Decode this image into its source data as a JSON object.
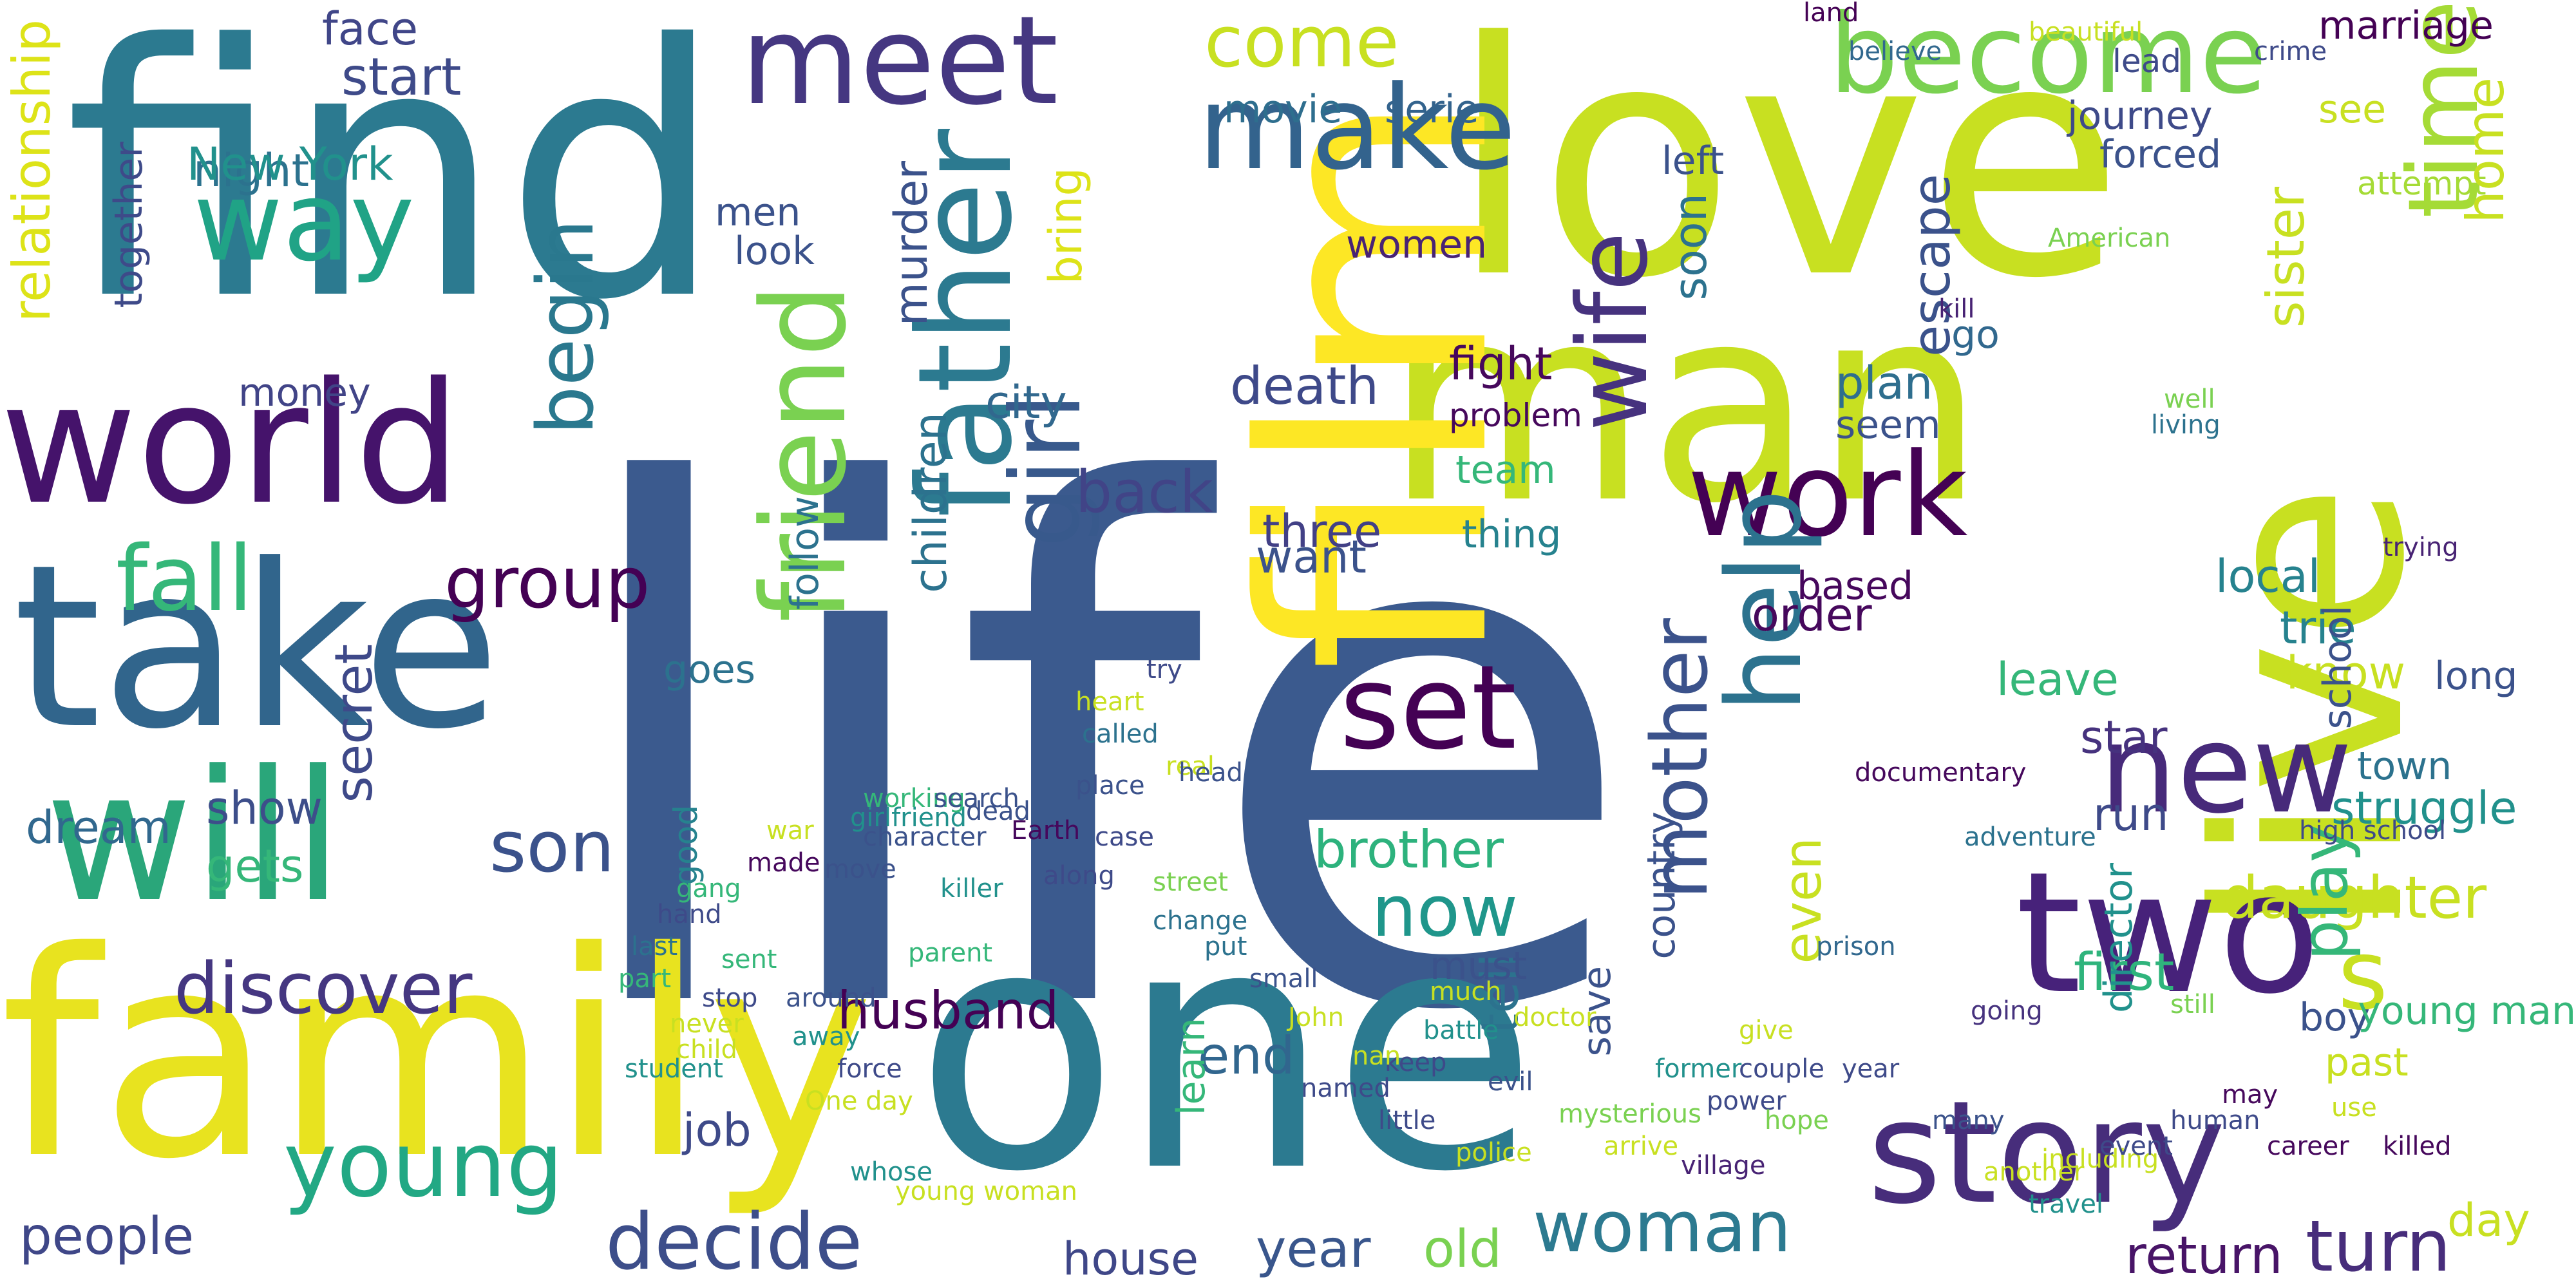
{
  "words": [
    {
      "text": "life",
      "color": "#3b5a8e"
    },
    {
      "text": "find",
      "color": "#2c7a90"
    },
    {
      "text": "love",
      "color": "#c8e021"
    },
    {
      "text": "one",
      "color": "#2c7a90"
    },
    {
      "text": "family",
      "color": "#e8e31f"
    },
    {
      "text": "take",
      "color": "#31658c"
    },
    {
      "text": "man",
      "color": "#c8e021"
    },
    {
      "text": "world",
      "color": "#45136b"
    },
    {
      "text": "will",
      "color": "#2aa67a"
    },
    {
      "text": "film",
      "color": "#fde725"
    },
    {
      "text": "live",
      "color": "#c8e021"
    },
    {
      "text": "two",
      "color": "#47227a"
    },
    {
      "text": "story",
      "color": "#472d7b"
    },
    {
      "text": "father",
      "color": "#2c7a90"
    },
    {
      "text": "meet",
      "color": "#453781"
    },
    {
      "text": "become",
      "color": "#7ad151"
    },
    {
      "text": "friend",
      "color": "#7ad151"
    },
    {
      "text": "way",
      "color": "#20a386"
    },
    {
      "text": "young",
      "color": "#22a884"
    },
    {
      "text": "make",
      "color": "#33638d"
    },
    {
      "text": "new",
      "color": "#472a7a"
    },
    {
      "text": "girl",
      "color": "#38598c"
    },
    {
      "text": "set",
      "color": "#440154"
    },
    {
      "text": "work",
      "color": "#440154"
    },
    {
      "text": "help",
      "color": "#2c728e"
    },
    {
      "text": "wife",
      "color": "#46327e"
    },
    {
      "text": "time",
      "color": "#a5db36"
    },
    {
      "text": "decide",
      "color": "#3d4e8a"
    },
    {
      "text": "discover",
      "color": "#453781"
    },
    {
      "text": "fall",
      "color": "#35b779"
    },
    {
      "text": "son",
      "color": "#3b528b"
    },
    {
      "text": "woman",
      "color": "#2c7a90"
    },
    {
      "text": "group",
      "color": "#440154"
    },
    {
      "text": "begin",
      "color": "#2a788e"
    },
    {
      "text": "mother",
      "color": "#3b528b"
    },
    {
      "text": "come",
      "color": "#c8e021"
    },
    {
      "text": "now",
      "color": "#1f968b"
    },
    {
      "text": "daughter",
      "color": "#c8e021"
    },
    {
      "text": "s",
      "color": "#c8e021"
    },
    {
      "text": "brother",
      "color": "#2db27d"
    },
    {
      "text": "death",
      "color": "#3e4989"
    },
    {
      "text": "back",
      "color": "#414487"
    },
    {
      "text": "first",
      "color": "#2fb47c"
    },
    {
      "text": "husband",
      "color": "#440154"
    },
    {
      "text": "end",
      "color": "#31668e"
    },
    {
      "text": "turn",
      "color": "#472d7b"
    },
    {
      "text": "return",
      "color": "#481467"
    },
    {
      "text": "year",
      "color": "#39568c"
    },
    {
      "text": "old",
      "color": "#7ad151"
    },
    {
      "text": "house",
      "color": "#3f4788"
    },
    {
      "text": "people",
      "color": "#3f4788"
    },
    {
      "text": "job",
      "color": "#3e4a89"
    },
    {
      "text": "dream",
      "color": "#31688e"
    },
    {
      "text": "secret",
      "color": "#3e4989"
    },
    {
      "text": "show",
      "color": "#3d4e8a"
    },
    {
      "text": "gets",
      "color": "#35b779"
    },
    {
      "text": "start",
      "color": "#3e4a89"
    },
    {
      "text": "night",
      "color": "#2c728e"
    },
    {
      "text": "face",
      "color": "#404688"
    },
    {
      "text": "money",
      "color": "#414487"
    },
    {
      "text": "together",
      "color": "#3e4a89"
    },
    {
      "text": "relationship",
      "color": "#dde318"
    },
    {
      "text": "New York",
      "color": "#21918c"
    },
    {
      "text": "men",
      "color": "#3b528b"
    },
    {
      "text": "look",
      "color": "#3b528b"
    },
    {
      "text": "women",
      "color": "#482374"
    },
    {
      "text": "murder",
      "color": "#3b528b"
    },
    {
      "text": "city",
      "color": "#31688e"
    },
    {
      "text": "children",
      "color": "#2c728e"
    },
    {
      "text": "follow",
      "color": "#2c728e"
    },
    {
      "text": "bring",
      "color": "#dde318"
    },
    {
      "text": "movie",
      "color": "#2e6e8e"
    },
    {
      "text": "serie",
      "color": "#33638d"
    },
    {
      "text": "want",
      "color": "#3b528b"
    },
    {
      "text": "three",
      "color": "#424086"
    },
    {
      "text": "fight",
      "color": "#46085c"
    },
    {
      "text": "team",
      "color": "#35b779"
    },
    {
      "text": "thing",
      "color": "#26828e"
    },
    {
      "text": "problem",
      "color": "#46085c"
    },
    {
      "text": "plan",
      "color": "#2e6e8e"
    },
    {
      "text": "seem",
      "color": "#3b528b"
    },
    {
      "text": "escape",
      "color": "#3b528b"
    },
    {
      "text": "go",
      "color": "#31688e"
    },
    {
      "text": "based",
      "color": "#46085c"
    },
    {
      "text": "order",
      "color": "#46085c"
    },
    {
      "text": "leave",
      "color": "#35b779"
    },
    {
      "text": "star",
      "color": "#46327e"
    },
    {
      "text": "sister",
      "color": "#c8e021"
    },
    {
      "text": "see",
      "color": "#c8e021"
    },
    {
      "text": "town",
      "color": "#2c728e"
    },
    {
      "text": "past",
      "color": "#c8e021"
    },
    {
      "text": "soon",
      "color": "#2c728e"
    },
    {
      "text": "forced",
      "color": "#3b528b"
    },
    {
      "text": "left",
      "color": "#3b528b"
    },
    {
      "text": "journey",
      "color": "#3e4a89"
    },
    {
      "text": "land",
      "color": "#440154"
    },
    {
      "text": "beautiful",
      "color": "#c8e021"
    },
    {
      "text": "believe",
      "color": "#31688e"
    },
    {
      "text": "lead",
      "color": "#3e4a89"
    },
    {
      "text": "marriage",
      "color": "#440154"
    },
    {
      "text": "crime",
      "color": "#3e4a89"
    },
    {
      "text": "attempt",
      "color": "#a5db36"
    },
    {
      "text": "home",
      "color": "#c8e021"
    },
    {
      "text": "local",
      "color": "#26828e"
    },
    {
      "text": "trie",
      "color": "#26828e"
    },
    {
      "text": "know",
      "color": "#c8e021"
    },
    {
      "text": "struggle",
      "color": "#21918c"
    },
    {
      "text": "trying",
      "color": "#482374"
    },
    {
      "text": "long",
      "color": "#3b528b"
    },
    {
      "text": "play",
      "color": "#35b779"
    },
    {
      "text": "run",
      "color": "#3e4a89"
    },
    {
      "text": "boy",
      "color": "#3b528b"
    },
    {
      "text": "day",
      "color": "#c8e021"
    },
    {
      "text": "even",
      "color": "#c8e021"
    },
    {
      "text": "tell",
      "color": "#2c728e"
    },
    {
      "text": "well",
      "color": "#7ad151"
    },
    {
      "text": "living",
      "color": "#2c728e"
    },
    {
      "text": "American",
      "color": "#7ad151"
    },
    {
      "text": "kill",
      "color": "#482374"
    },
    {
      "text": "save",
      "color": "#3b528b"
    },
    {
      "text": "goes",
      "color": "#2c728e"
    },
    {
      "text": "must",
      "color": "#3b528b"
    },
    {
      "text": "documentary",
      "color": "#46085c"
    },
    {
      "text": "adventure",
      "color": "#2c728e"
    },
    {
      "text": "director",
      "color": "#21918c"
    },
    {
      "text": "going",
      "color": "#46327e"
    },
    {
      "text": "good",
      "color": "#26828e"
    },
    {
      "text": "learn",
      "color": "#35b779"
    },
    {
      "text": "country",
      "color": "#3b528b"
    },
    {
      "text": "real",
      "color": "#c8e021"
    },
    {
      "text": "high school",
      "color": "#3e4a89"
    },
    {
      "text": "young man",
      "color": "#35b779"
    },
    {
      "text": "school",
      "color": "#3b528b"
    },
    {
      "text": "prison",
      "color": "#31688e"
    },
    {
      "text": "head",
      "color": "#3b528b"
    },
    {
      "text": "couple",
      "color": "#3e4a89"
    },
    {
      "text": "power",
      "color": "#3e4a89"
    },
    {
      "text": "hope",
      "color": "#7ad151"
    },
    {
      "text": "village",
      "color": "#482374"
    },
    {
      "text": "including",
      "color": "#c8e021"
    },
    {
      "text": "much",
      "color": "#c8e021"
    },
    {
      "text": "former",
      "color": "#21918c"
    },
    {
      "text": "still",
      "color": "#7ad151"
    },
    {
      "text": "young woman",
      "color": "#c8e021"
    },
    {
      "text": "whose",
      "color": "#21918c"
    },
    {
      "text": "student",
      "color": "#21918c"
    },
    {
      "text": "killer",
      "color": "#21918c"
    },
    {
      "text": "doctor",
      "color": "#c8e021"
    },
    {
      "text": "keep",
      "color": "#3e4a89"
    },
    {
      "text": "battle",
      "color": "#21918c"
    },
    {
      "text": "girlfriend",
      "color": "#21918c"
    },
    {
      "text": "parent",
      "color": "#35b779"
    },
    {
      "text": "heart",
      "color": "#c8e021"
    },
    {
      "text": "called",
      "color": "#2c728e"
    },
    {
      "text": "try",
      "color": "#3e4a89"
    },
    {
      "text": "dead",
      "color": "#3b528b"
    },
    {
      "text": "working",
      "color": "#35b779"
    },
    {
      "text": "sent",
      "color": "#35b779"
    },
    {
      "text": "around",
      "color": "#3b528b"
    },
    {
      "text": "away",
      "color": "#21918c"
    },
    {
      "text": "force",
      "color": "#3e4a89"
    },
    {
      "text": "One day",
      "color": "#c8e021"
    },
    {
      "text": "child",
      "color": "#c8e021"
    },
    {
      "text": "never",
      "color": "#c8e021"
    },
    {
      "text": "stop",
      "color": "#3e4a89"
    },
    {
      "text": "part",
      "color": "#35b779"
    },
    {
      "text": "last",
      "color": "#2c728e"
    },
    {
      "text": "hand",
      "color": "#3e4a89"
    },
    {
      "text": "gang",
      "color": "#35b779"
    },
    {
      "text": "made",
      "color": "#46085c"
    },
    {
      "text": "war",
      "color": "#c8e021"
    },
    {
      "text": "move",
      "color": "#3b528b"
    },
    {
      "text": "character",
      "color": "#3b528b"
    },
    {
      "text": "search",
      "color": "#3b528b"
    },
    {
      "text": "Earth",
      "color": "#46085c"
    },
    {
      "text": "place",
      "color": "#3b528b"
    },
    {
      "text": "case",
      "color": "#3e4a89"
    },
    {
      "text": "along",
      "color": "#3e4a89"
    },
    {
      "text": "street",
      "color": "#7ad151"
    },
    {
      "text": "change",
      "color": "#2c728e"
    },
    {
      "text": "put",
      "color": "#2c728e"
    },
    {
      "text": "small",
      "color": "#3b528b"
    },
    {
      "text": "John",
      "color": "#c8e021"
    },
    {
      "text": "nan",
      "color": "#c8e021"
    },
    {
      "text": "evil",
      "color": "#3b528b"
    },
    {
      "text": "mysterious",
      "color": "#7ad151"
    },
    {
      "text": "arrive",
      "color": "#c8e021"
    },
    {
      "text": "police",
      "color": "#c8e021"
    },
    {
      "text": "little",
      "color": "#3e4a89"
    },
    {
      "text": "named",
      "color": "#3e4a89"
    },
    {
      "text": "give",
      "color": "#c8e021"
    },
    {
      "text": "year",
      "color": "#3e4a89"
    },
    {
      "text": "many",
      "color": "#3b528b"
    },
    {
      "text": "another",
      "color": "#c8e021"
    },
    {
      "text": "travel",
      "color": "#21918c"
    },
    {
      "text": "event",
      "color": "#3e4a89"
    },
    {
      "text": "human",
      "color": "#3e4a89"
    },
    {
      "text": "may",
      "color": "#46085c"
    },
    {
      "text": "career",
      "color": "#46085c"
    },
    {
      "text": "use",
      "color": "#c8e021"
    },
    {
      "text": "killed",
      "color": "#46085c"
    }
  ]
}
